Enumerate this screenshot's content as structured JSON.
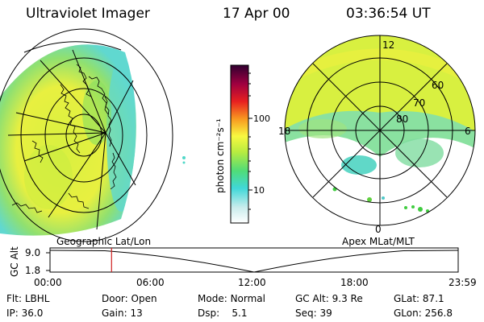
{
  "header": {
    "instrument": "Ultraviolet Imager",
    "date": "17 Apr 00",
    "time": "03:36:54 UT"
  },
  "colorbar": {
    "unit_label": "photon cm⁻²s⁻¹",
    "ticks": [
      "100",
      "10"
    ],
    "tick_values": [
      100,
      10
    ],
    "range": [
      2.5,
      330
    ],
    "scale": "log",
    "colors": [
      "#ffffff",
      "#c8ecec",
      "#40d8d8",
      "#50dc78",
      "#d8f040",
      "#f8f840",
      "#f89820",
      "#e82020",
      "#a00040",
      "#300030"
    ]
  },
  "left_map": {
    "caption": "Geographic Lat/Lon"
  },
  "right_map": {
    "caption": "Apex  MLat/MLT",
    "mlt_labels": [
      "12",
      "18",
      "6",
      "0"
    ],
    "mlat_labels": [
      "60",
      "70",
      "80"
    ]
  },
  "timeline": {
    "y_title": "GC Alt",
    "y_ticks": [
      "9.0",
      "1.8"
    ],
    "x_ticks": [
      "00:00",
      "06:00",
      "12:00",
      "18:00",
      "23:59"
    ],
    "current_hour": 3.615,
    "marker_color": "#d02020"
  },
  "info": {
    "rows": [
      [
        {
          "k": "Flt:",
          "v": "LBHL"
        },
        {
          "k": "Door:",
          "v": "Open"
        },
        {
          "k": "Mode:",
          "v": "Normal"
        },
        {
          "k": "GC Alt:",
          "v": "9.3 Re"
        },
        {
          "k": "GLat:",
          "v": "87.1"
        }
      ],
      [
        {
          "k": "IP:",
          "v": "36.0"
        },
        {
          "k": "Gain:",
          "v": "13"
        },
        {
          "k": "Dsp:",
          "v": "5.1"
        },
        {
          "k": "Seq:",
          "v": "39"
        },
        {
          "k": "GLon:",
          "v": "256.8"
        }
      ]
    ]
  }
}
